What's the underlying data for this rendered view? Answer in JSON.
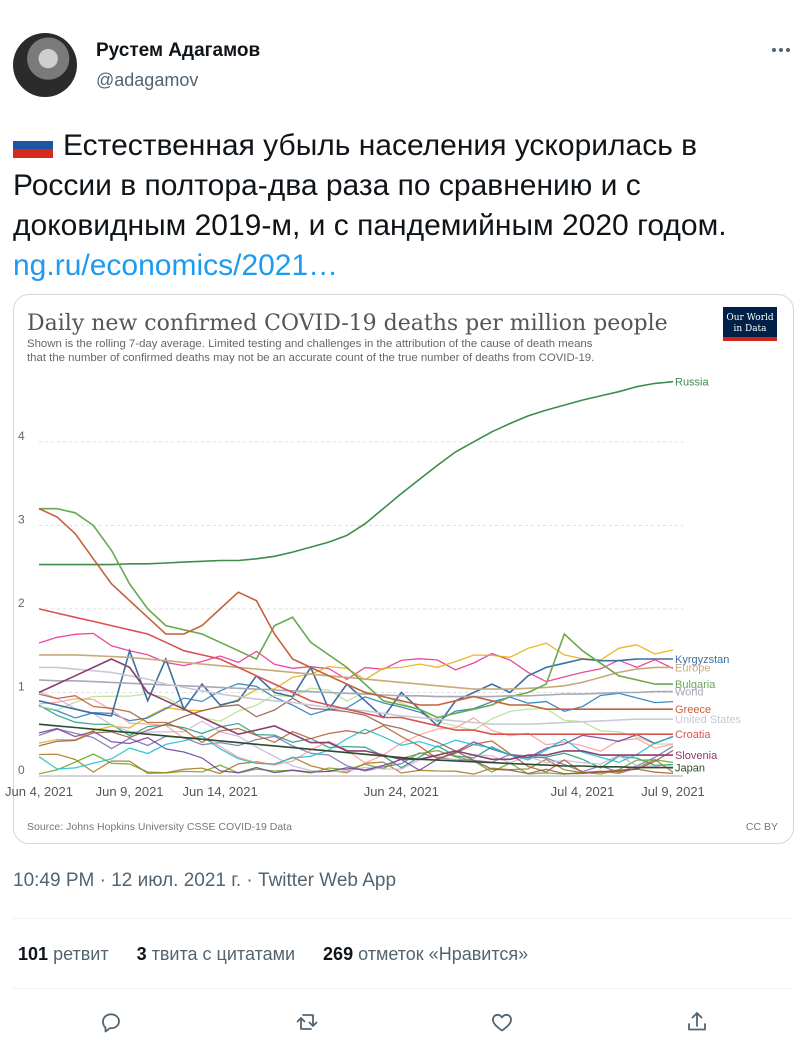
{
  "author": {
    "name": "Рустем Адагамов",
    "handle": "@adagamov"
  },
  "tweet": {
    "text": "Естественная убыль населения ускорилась в России в полтора-два раза по сравнению и с доковидным 2019-м, и с пандемийным 2020 годом.",
    "link": "ng.ru/economics/2021…",
    "flag": {
      "colors": [
        "#ffffff",
        "#1c57a5",
        "#d52b1e"
      ]
    }
  },
  "chart_data": {
    "type": "line",
    "title": "Daily new confirmed COVID-19 deaths per million people",
    "subtitle": "Shown is the rolling 7-day average. Limited testing and challenges in the attribution of the cause of death means that the number of confirmed deaths may not be an accurate count of the true number of deaths from COVID-19.",
    "subtitle_lines": [
      "Shown is the rolling 7-day average. Limited testing and challenges in the attribution of the cause of death means",
      "that the number of confirmed deaths may not be an accurate count of the true number of deaths from COVID-19."
    ],
    "logo": {
      "line1": "Our World",
      "line2": "in Data"
    },
    "source": "Source: Johns Hopkins University CSSE COVID-19 Data",
    "license": "CC BY",
    "x_ticks": [
      "Jun 4, 2021",
      "Jun 9, 2021",
      "Jun 14, 2021",
      "Jun 24, 2021",
      "Jul 4, 2021",
      "Jul 9, 2021"
    ],
    "x_tick_days": [
      0,
      5,
      10,
      20,
      30,
      35
    ],
    "y_ticks": [
      "0",
      "1",
      "2",
      "3",
      "4"
    ],
    "ylim": [
      0,
      4.8
    ],
    "xlim": [
      0,
      35
    ],
    "grid": true,
    "x": [
      0,
      1,
      2,
      3,
      4,
      5,
      6,
      7,
      8,
      9,
      10,
      11,
      12,
      13,
      14,
      15,
      16,
      17,
      18,
      19,
      20,
      21,
      22,
      23,
      24,
      25,
      26,
      27,
      28,
      29,
      30,
      31,
      32,
      33,
      34,
      35
    ],
    "series": [
      {
        "name": "Russia",
        "color": "#3c8d4b",
        "label": "Russia",
        "values": [
          2.53,
          2.53,
          2.53,
          2.53,
          2.53,
          2.54,
          2.54,
          2.55,
          2.56,
          2.57,
          2.58,
          2.58,
          2.6,
          2.63,
          2.68,
          2.74,
          2.8,
          2.88,
          3.02,
          3.2,
          3.38,
          3.55,
          3.72,
          3.88,
          4.0,
          4.12,
          4.22,
          4.31,
          4.38,
          4.44,
          4.5,
          4.55,
          4.6,
          4.66,
          4.7,
          4.72
        ]
      },
      {
        "name": "Kyrgyzstan",
        "color": "#3f6f9e",
        "label": "Kyrgyzstan",
        "values": [
          0.9,
          0.85,
          0.8,
          0.75,
          0.72,
          1.5,
          0.9,
          1.4,
          0.8,
          1.1,
          0.85,
          0.9,
          1.2,
          1.0,
          0.95,
          1.3,
          0.8,
          1.1,
          0.9,
          0.7,
          1.0,
          0.8,
          0.6,
          0.9,
          1.0,
          1.1,
          1.0,
          1.2,
          1.3,
          1.35,
          1.4,
          1.38,
          1.38,
          1.4,
          1.4,
          1.4
        ]
      },
      {
        "name": "Europe",
        "color": "#c8a97a",
        "label": "Europe",
        "values": [
          1.45,
          1.45,
          1.45,
          1.44,
          1.43,
          1.42,
          1.4,
          1.38,
          1.36,
          1.34,
          1.32,
          1.3,
          1.28,
          1.26,
          1.24,
          1.22,
          1.2,
          1.18,
          1.16,
          1.14,
          1.12,
          1.1,
          1.08,
          1.06,
          1.04,
          1.04,
          1.04,
          1.05,
          1.06,
          1.08,
          1.12,
          1.18,
          1.24,
          1.28,
          1.3,
          1.3
        ]
      },
      {
        "name": "Bulgaria",
        "color": "#6aa84f",
        "label": "Bulgaria",
        "values": [
          3.2,
          3.2,
          3.15,
          3.0,
          2.7,
          2.3,
          2.0,
          1.8,
          1.75,
          1.7,
          1.6,
          1.5,
          1.4,
          1.8,
          1.9,
          1.6,
          1.45,
          1.3,
          1.1,
          0.9,
          0.85,
          0.8,
          0.7,
          0.75,
          0.8,
          0.85,
          0.95,
          1.0,
          1.1,
          1.7,
          1.5,
          1.35,
          1.2,
          1.15,
          1.1,
          1.1
        ]
      },
      {
        "name": "World",
        "color": "#a8a8b8",
        "label": "World",
        "values": [
          1.15,
          1.14,
          1.14,
          1.13,
          1.12,
          1.11,
          1.1,
          1.09,
          1.08,
          1.07,
          1.06,
          1.05,
          1.04,
          1.03,
          1.02,
          1.01,
          1.0,
          0.99,
          0.98,
          0.97,
          0.96,
          0.96,
          0.95,
          0.95,
          0.95,
          0.95,
          0.96,
          0.96,
          0.97,
          0.98,
          0.98,
          0.99,
          1.0,
          1.0,
          1.01,
          1.01
        ]
      },
      {
        "name": "Greece",
        "color": "#c4623a",
        "label": "Greece",
        "values": [
          3.2,
          3.1,
          2.9,
          2.6,
          2.3,
          2.1,
          1.9,
          1.7,
          1.7,
          1.8,
          2.0,
          2.2,
          2.1,
          1.7,
          1.4,
          1.3,
          1.2,
          1.1,
          1.0,
          0.95,
          0.9,
          0.85,
          0.85,
          0.9,
          0.95,
          0.9,
          0.85,
          0.85,
          0.8,
          0.8,
          0.8,
          0.8,
          0.8,
          0.8,
          0.8,
          0.8
        ]
      },
      {
        "name": "United States",
        "color": "#c9c9d6",
        "label": "United States",
        "values": [
          1.3,
          1.3,
          1.28,
          1.26,
          1.24,
          1.2,
          1.16,
          1.1,
          1.06,
          1.02,
          0.98,
          0.95,
          0.92,
          0.9,
          0.88,
          0.85,
          0.82,
          0.8,
          0.78,
          0.75,
          0.72,
          0.7,
          0.68,
          0.66,
          0.64,
          0.62,
          0.62,
          0.62,
          0.63,
          0.64,
          0.65,
          0.66,
          0.67,
          0.68,
          0.68,
          0.68
        ]
      },
      {
        "name": "Croatia",
        "color": "#d9534f",
        "label": "Croatia",
        "values": [
          2.0,
          1.95,
          1.9,
          1.85,
          1.8,
          1.75,
          1.7,
          1.6,
          1.5,
          1.45,
          1.4,
          1.3,
          1.2,
          1.1,
          1.0,
          0.9,
          0.85,
          0.8,
          0.75,
          0.7,
          0.7,
          0.65,
          0.6,
          0.55,
          0.55,
          0.5,
          0.5,
          0.5,
          0.5,
          0.5,
          0.5,
          0.5,
          0.5,
          0.5,
          0.5,
          0.5
        ]
      },
      {
        "name": "Slovenia",
        "color": "#8e3b6e",
        "label": "Slovenia",
        "values": [
          1.0,
          1.1,
          1.2,
          1.3,
          1.4,
          1.3,
          1.0,
          0.9,
          0.8,
          0.7,
          0.6,
          0.5,
          0.55,
          0.6,
          0.5,
          0.4,
          0.4,
          0.3,
          0.3,
          0.25,
          0.2,
          0.2,
          0.25,
          0.3,
          0.25,
          0.2,
          0.2,
          0.25,
          0.25,
          0.3,
          0.3,
          0.25,
          0.25,
          0.25,
          0.25,
          0.25
        ]
      },
      {
        "name": "Japan",
        "color": "#2a4d2f",
        "label": "Japan",
        "values": [
          0.62,
          0.6,
          0.58,
          0.56,
          0.54,
          0.52,
          0.5,
          0.48,
          0.46,
          0.44,
          0.42,
          0.4,
          0.38,
          0.36,
          0.34,
          0.32,
          0.3,
          0.28,
          0.26,
          0.24,
          0.22,
          0.2,
          0.19,
          0.18,
          0.17,
          0.16,
          0.15,
          0.14,
          0.13,
          0.12,
          0.12,
          0.11,
          0.11,
          0.1,
          0.1,
          0.1
        ]
      }
    ],
    "background_series_colors": [
      "#1b9e77",
      "#7570b3",
      "#e7298a",
      "#66a61e",
      "#e6ab02",
      "#a6761d",
      "#1f78b4",
      "#b2df8a",
      "#fb9a99",
      "#cab2d6",
      "#6a3d9a",
      "#b15928",
      "#17becf",
      "#8c564b"
    ]
  },
  "footer": {
    "timestamp": "10:49 PM · 12 июл. 2021 г. · Twitter Web App",
    "stats": [
      {
        "value": "101",
        "label": "ретвит"
      },
      {
        "value": "3",
        "label": "твита с цитатами"
      },
      {
        "value": "269",
        "label": "отметок «Нравится»"
      }
    ]
  },
  "actions": [
    {
      "name": "reply",
      "icon": "reply-icon"
    },
    {
      "name": "retweet",
      "icon": "retweet-icon"
    },
    {
      "name": "like",
      "icon": "like-icon"
    },
    {
      "name": "share",
      "icon": "share-icon"
    }
  ]
}
